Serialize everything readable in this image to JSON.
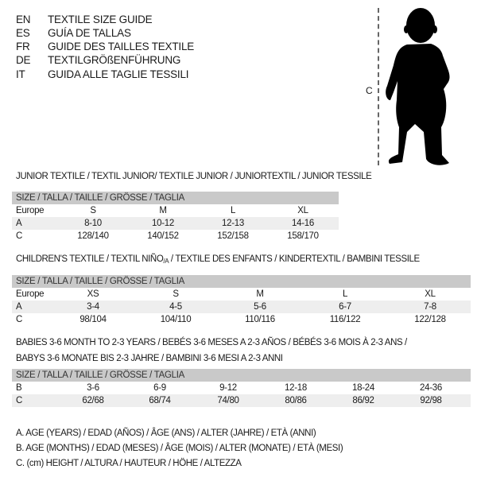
{
  "languages": [
    {
      "code": "EN",
      "title": "TEXTILE SIZE GUIDE"
    },
    {
      "code": "ES",
      "title": "GUÍA DE TALLAS"
    },
    {
      "code": "FR",
      "title": "GUIDE DES TAILLES TEXTILE"
    },
    {
      "code": "DE",
      "title": "TEXTILGRÖßENFÜHRUNG"
    },
    {
      "code": "IT",
      "title": "GUIDA ALLE TAGLIE TESSILI"
    }
  ],
  "figure": {
    "measure_label": "C",
    "icon": "baby-silhouette"
  },
  "size_header": "SIZE / TALLA / TAILLE / GRÖSSE / TAGLIA",
  "junior": {
    "title": "JUNIOR TEXTILE / TEXTIL JUNIOR/ TEXTILE JUNIOR / JUNIORTEXTIL / JUNIOR TESSILE",
    "rows": [
      {
        "label": "Europe",
        "values": [
          "S",
          "M",
          "L",
          "XL"
        ]
      },
      {
        "label": "A",
        "values": [
          "8-10",
          "10-12",
          "12-13",
          "14-16"
        ]
      },
      {
        "label": "C",
        "values": [
          "128/140",
          "140/152",
          "152/158",
          "158/170"
        ]
      }
    ]
  },
  "children": {
    "title_a": "CHILDREN'S TEXTILE / TEXTIL NIÑO",
    "title_sub": "/A",
    "title_b": " / TEXTILE DES ENFANTS / KINDERTEXTIL / BAMBINI TESSILE",
    "rows": [
      {
        "label": "Europe",
        "values": [
          "XS",
          "S",
          "M",
          "L",
          "XL"
        ]
      },
      {
        "label": "A",
        "values": [
          "3-4",
          "4-5",
          "5-6",
          "6-7",
          "7-8"
        ]
      },
      {
        "label": "C",
        "values": [
          "98/104",
          "104/110",
          "110/116",
          "116/122",
          "122/128"
        ]
      }
    ]
  },
  "babies": {
    "title_line1": "BABIES 3-6 MONTH TO 2-3 YEARS / BEBÉS 3-6 MESES A 2-3 AÑOS / BÉBÉS 3-6 MOIS À 2-3 ANS /",
    "title_line2": "BABYS 3-6 MONATE BIS 2-3 JAHRE / BAMBINI 3-6 MESI A 2-3 ANNI",
    "rows": [
      {
        "label": "B",
        "values": [
          "3-6",
          "6-9",
          "9-12",
          "12-18",
          "18-24",
          "24-36"
        ]
      },
      {
        "label": "C",
        "values": [
          "62/68",
          "68/74",
          "74/80",
          "80/86",
          "86/92",
          "92/98"
        ]
      }
    ]
  },
  "legend": [
    "A. AGE (YEARS) / EDAD (AÑOS) / ÂGE (ANS) / ALTER (JAHRE) / ETÀ (ANNI)",
    "B. AGE (MONTHS) / EDAD (MESES) / ÂGE (MOIS) / ALTER (MONATE) / ETÀ (MESI)",
    "C. (cm) HEIGHT / ALTURA / HAUTEUR / HÖHE / ALTEZZA"
  ]
}
